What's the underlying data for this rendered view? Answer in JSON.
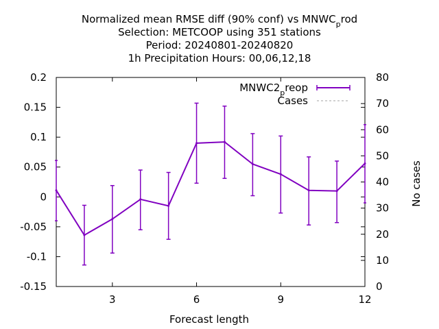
{
  "chart_data": {
    "type": "line",
    "title_lines": [
      "Normalized mean RMSE diff (90% conf) vs MNWC",
      "Selection: METCOOP using   351 stations",
      "Period: 20240801-20240820",
      "1h Precipitation   Hours:  00,06,12,18"
    ],
    "title_sub_main": "p",
    "title_sub_tail": "rod",
    "xlabel": "Forecast length",
    "ylabel": "",
    "y2label": "No cases",
    "xlim": [
      1,
      12
    ],
    "ylim": [
      -0.15,
      0.2
    ],
    "y2lim": [
      0,
      80
    ],
    "x_ticks": [
      3,
      6,
      9,
      12
    ],
    "y_ticks": [
      "0.2",
      "0.15",
      "0.1",
      "0.05",
      "0",
      "-0.05",
      "-0.1",
      "-0.15"
    ],
    "y_tick_values": [
      0.2,
      0.15,
      0.1,
      0.05,
      0,
      -0.05,
      -0.1,
      -0.15
    ],
    "y2_ticks": [
      80,
      70,
      60,
      50,
      40,
      30,
      20,
      10,
      0
    ],
    "grid": false,
    "legend_position": "top-right",
    "series": [
      {
        "name_main": "MNWC2",
        "name_sub": "p",
        "name_tail": "reop",
        "color": "#8000c0",
        "x": [
          1,
          2,
          3,
          4,
          5,
          6,
          7,
          8,
          9,
          10,
          11,
          12
        ],
        "y": [
          0.011,
          -0.064,
          -0.037,
          -0.004,
          -0.015,
          0.09,
          0.092,
          0.055,
          0.038,
          0.011,
          0.01,
          0.056
        ],
        "y_low": [
          -0.04,
          -0.114,
          -0.094,
          -0.055,
          -0.071,
          0.023,
          0.031,
          0.002,
          -0.027,
          -0.047,
          -0.043,
          -0.01
        ],
        "y_high": [
          0.061,
          -0.014,
          0.019,
          0.045,
          0.041,
          0.157,
          0.152,
          0.106,
          0.102,
          0.067,
          0.06,
          0.121
        ]
      },
      {
        "name": "Cases",
        "color": "#a0a0a0",
        "x": [],
        "y": []
      }
    ]
  }
}
